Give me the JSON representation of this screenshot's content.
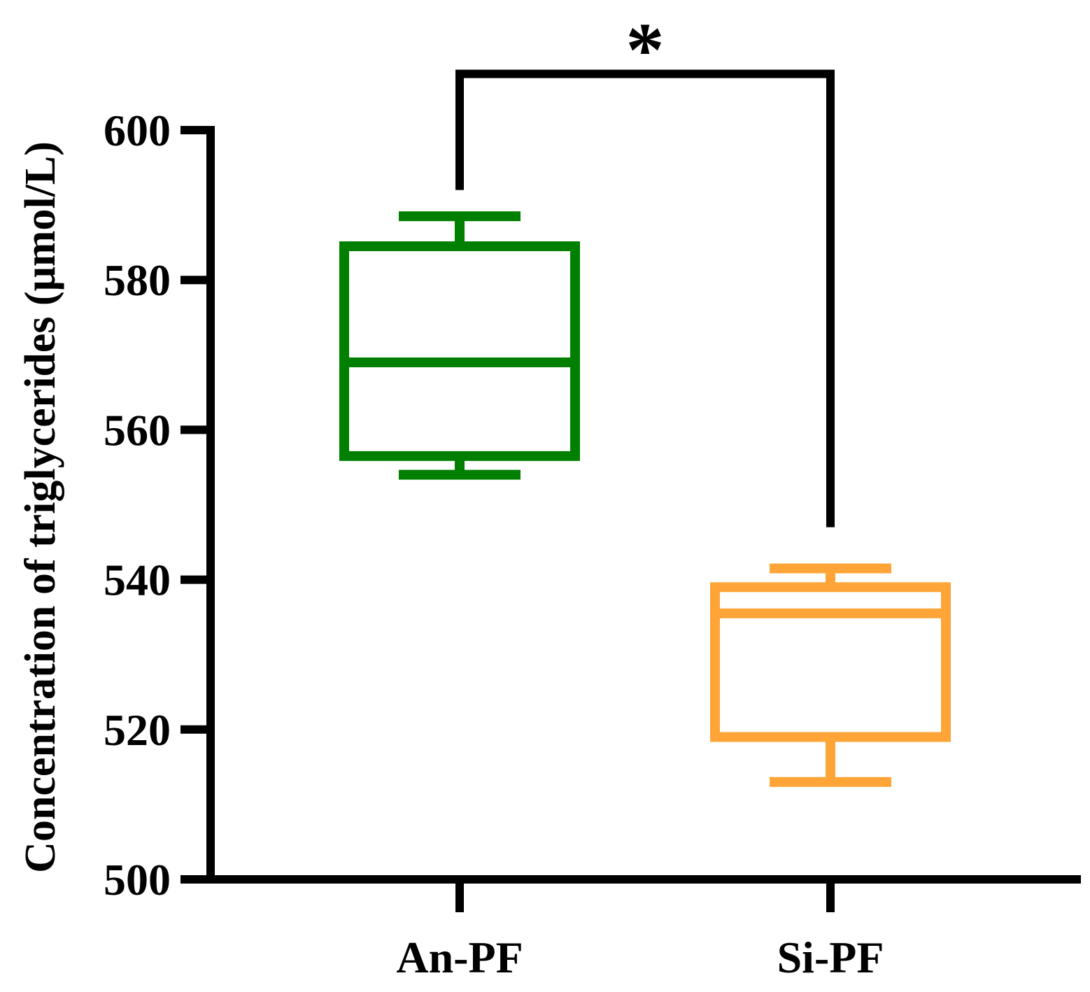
{
  "chart_data": {
    "type": "box",
    "title": "",
    "xlabel": "",
    "ylabel": "Concentration of triglycerides (μmol/L)",
    "ylim": [
      500,
      600
    ],
    "yticks": [
      500,
      520,
      540,
      560,
      580,
      600
    ],
    "grid": false,
    "legend": "none",
    "categories": [
      "An-PF",
      "Si-PF"
    ],
    "boxes": [
      {
        "category": "An-PF",
        "min": 554,
        "q1": 556.5,
        "median": 569,
        "q3": 584.5,
        "max": 588.5,
        "color": "#007f00"
      },
      {
        "category": "Si-PF",
        "min": 513,
        "q1": 519,
        "median": 535.5,
        "q3": 539,
        "max": 541.5,
        "color": "#ffa436"
      }
    ],
    "annotations": [
      {
        "type": "significance-bracket",
        "from": "An-PF",
        "to": "Si-PF",
        "label": "*",
        "y": 607.5,
        "left_end": 592,
        "right_end": 547
      }
    ]
  }
}
